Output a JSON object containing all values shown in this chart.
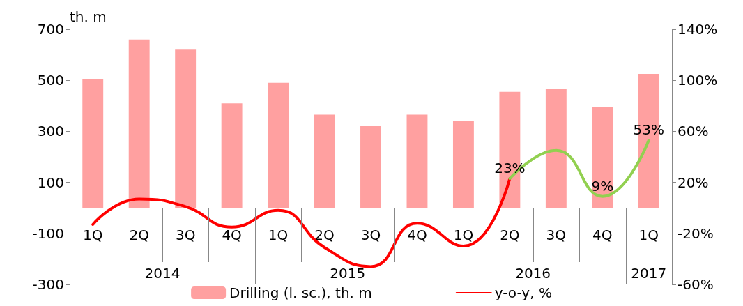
{
  "chart_data": {
    "type": "bar",
    "categories": [
      "1Q",
      "2Q",
      "3Q",
      "4Q",
      "1Q",
      "2Q",
      "3Q",
      "4Q",
      "1Q",
      "2Q",
      "3Q",
      "4Q",
      "1Q"
    ],
    "annotations": [
      "2014",
      "2015",
      "2016",
      "2017"
    ],
    "ylabel": "th. m",
    "ylim": [
      -300,
      700
    ],
    "yticks": [
      -300,
      -100,
      100,
      300,
      500,
      700
    ],
    "y2lim": [
      -60,
      140
    ],
    "y2ticks": [
      {
        "value": -60,
        "label": "-60%"
      },
      {
        "value": -20,
        "label": "-20%"
      },
      {
        "value": 20,
        "label": "20%"
      },
      {
        "value": 60,
        "label": "60%"
      },
      {
        "value": 100,
        "label": "100%"
      },
      {
        "value": 140,
        "label": "140%"
      }
    ],
    "legend": "bottom",
    "grid": false,
    "marker": "none",
    "line_style": "solid",
    "series": [
      {
        "name": "Drilling (l. sc.), th. m",
        "color": "#ffa0a0",
        "values": [
          505,
          660,
          620,
          410,
          490,
          365,
          320,
          365,
          340,
          455,
          465,
          395,
          525
        ]
      },
      {
        "type": "line",
        "axis": "y2",
        "name": "y-o-y, %",
        "color": "#ff0000",
        "values": [
          -13,
          7,
          1,
          -15,
          -2,
          -31,
          -46,
          -12,
          -30,
          23,
          null,
          null,
          null
        ]
      },
      {
        "type": "line",
        "axis": "y2",
        "color": "#92d050",
        "values": [
          null,
          null,
          null,
          null,
          null,
          null,
          null,
          null,
          null,
          23,
          45,
          9,
          53
        ],
        "value_labels": [
          null,
          null,
          null,
          null,
          null,
          null,
          null,
          null,
          null,
          "23%",
          null,
          "9%",
          "53%"
        ]
      }
    ]
  }
}
